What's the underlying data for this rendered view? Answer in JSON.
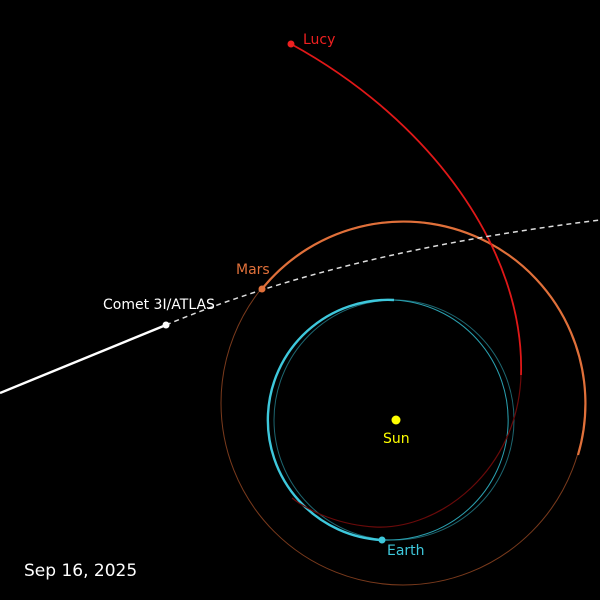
{
  "date": "Sep 16, 2025",
  "bodies": {
    "sun": {
      "label": "Sun",
      "color": "#ffff00"
    },
    "earth": {
      "label": "Earth",
      "color": "#3ec8dc"
    },
    "mars": {
      "label": "Mars",
      "color": "#e0703a"
    },
    "lucy": {
      "label": "Lucy",
      "color": "#ee2020"
    },
    "comet": {
      "label": "Comet 3I/ATLAS",
      "color": "#ffffff"
    }
  }
}
